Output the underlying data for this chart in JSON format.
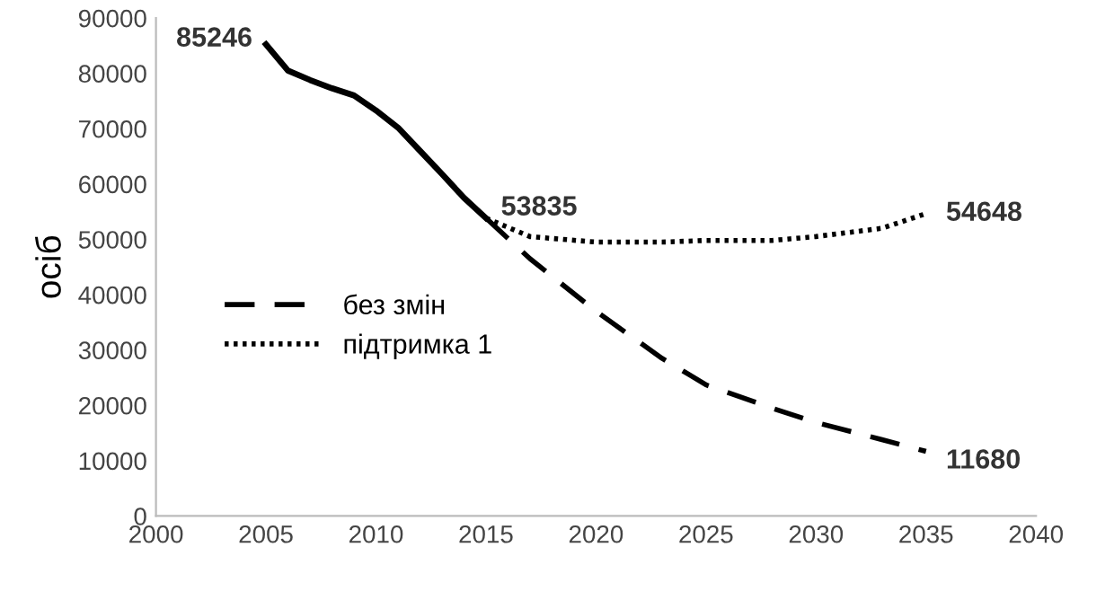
{
  "chart_data": {
    "type": "line",
    "ylabel": "осіб",
    "xlim": [
      2000,
      2040
    ],
    "xticks": [
      2000,
      2005,
      2010,
      2015,
      2020,
      2025,
      2030,
      2035,
      2040
    ],
    "ylim": [
      0,
      90000
    ],
    "yticks": [
      0,
      10000,
      20000,
      30000,
      40000,
      50000,
      60000,
      70000,
      80000,
      90000
    ],
    "grid": false,
    "legend": "left",
    "series": [
      {
        "color": "#000000",
        "line_style": "solid",
        "x": [
          2005,
          2006,
          2007,
          2008,
          2009,
          2010,
          2011,
          2012,
          2013,
          2014,
          2015
        ],
        "values": [
          85246,
          80500,
          78800,
          77300,
          76000,
          73300,
          70200,
          66000,
          61800,
          57500,
          53835
        ]
      },
      {
        "name": "без змін",
        "color": "#000000",
        "line_style": "dashed",
        "x": [
          2015,
          2017,
          2020,
          2023,
          2025,
          2028,
          2030,
          2033,
          2035
        ],
        "values": [
          53835,
          46500,
          37000,
          28500,
          23700,
          19500,
          16900,
          13800,
          11680
        ]
      },
      {
        "name": "підтримка 1",
        "color": "#000000",
        "line_style": "dotted",
        "x": [
          2015,
          2017,
          2020,
          2023,
          2025,
          2028,
          2030,
          2033,
          2035
        ],
        "values": [
          53835,
          50500,
          49500,
          49500,
          49800,
          49800,
          50500,
          52000,
          54648
        ]
      }
    ],
    "annotations": [
      {
        "text": "85246",
        "x": 2005,
        "y": 85246
      },
      {
        "text": "53835",
        "x": 2015,
        "y": 53835
      },
      {
        "text": "54648",
        "x": 2035,
        "y": 54648
      },
      {
        "text": "11680",
        "x": 2035,
        "y": 11680
      }
    ]
  }
}
